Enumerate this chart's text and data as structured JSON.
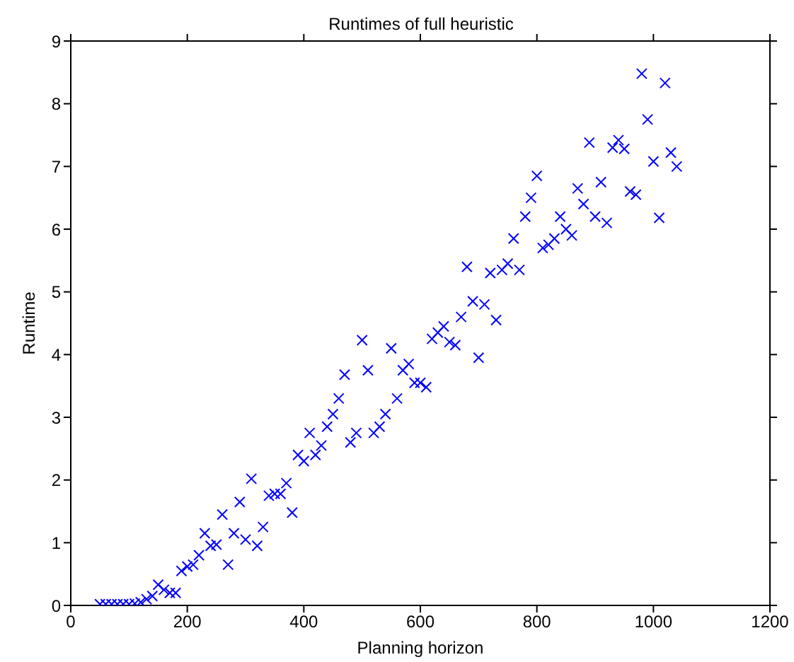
{
  "chart_data": {
    "type": "scatter",
    "title": "Runtimes of full heuristic",
    "xlabel": "Planning horizon",
    "ylabel": "Runtime",
    "xlim": [
      0,
      1200
    ],
    "xticks": [
      0,
      200,
      400,
      600,
      800,
      1000,
      1200
    ],
    "ylim": [
      0,
      9
    ],
    "yticks": [
      0,
      1,
      2,
      3,
      4,
      5,
      6,
      7,
      8,
      9
    ],
    "marker": "cross",
    "x": [
      50,
      60,
      70,
      80,
      90,
      100,
      110,
      120,
      130,
      140,
      150,
      160,
      170,
      180,
      190,
      200,
      210,
      220,
      230,
      240,
      250,
      260,
      270,
      280,
      290,
      300,
      310,
      320,
      330,
      340,
      350,
      360,
      370,
      380,
      390,
      400,
      410,
      420,
      430,
      440,
      450,
      460,
      470,
      480,
      490,
      500,
      510,
      520,
      530,
      540,
      550,
      560,
      570,
      580,
      590,
      600,
      610,
      620,
      630,
      640,
      650,
      660,
      670,
      680,
      690,
      700,
      710,
      720,
      730,
      740,
      750,
      760,
      770,
      780,
      790,
      800,
      810,
      820,
      830,
      840,
      850,
      860,
      870,
      880,
      890,
      900,
      910,
      920,
      930,
      940,
      950,
      960,
      970,
      980,
      990,
      1000,
      1010,
      1020,
      1030,
      1040
    ],
    "series": [
      {
        "color": "#0000ff",
        "values": [
          0.02,
          0.02,
          0.02,
          0.02,
          0.02,
          0.02,
          0.03,
          0.05,
          0.1,
          0.15,
          0.33,
          0.25,
          0.2,
          0.2,
          0.55,
          0.62,
          0.65,
          0.8,
          1.15,
          0.95,
          0.97,
          1.45,
          0.65,
          1.15,
          1.65,
          1.05,
          2.02,
          0.95,
          1.25,
          1.75,
          1.78,
          1.78,
          1.95,
          1.48,
          2.4,
          2.3,
          2.75,
          2.4,
          2.55,
          2.85,
          3.05,
          3.3,
          3.68,
          2.6,
          2.75,
          4.23,
          3.75,
          2.75,
          2.85,
          3.05,
          4.1,
          3.3,
          3.75,
          3.85,
          3.55,
          3.55,
          3.48,
          4.25,
          4.35,
          4.45,
          4.2,
          4.15,
          4.6,
          5.4,
          4.85,
          3.95,
          4.8,
          5.3,
          4.55,
          5.35,
          5.45,
          5.85,
          5.35,
          6.2,
          6.5,
          6.85,
          5.7,
          5.75,
          5.85,
          6.2,
          6.0,
          5.9,
          6.65,
          6.4,
          7.38,
          6.2,
          6.75,
          6.1,
          7.3,
          7.42,
          7.28,
          6.6,
          6.55,
          8.48,
          7.75,
          7.08,
          6.18,
          8.33,
          7.22,
          7.0
        ]
      }
    ]
  }
}
